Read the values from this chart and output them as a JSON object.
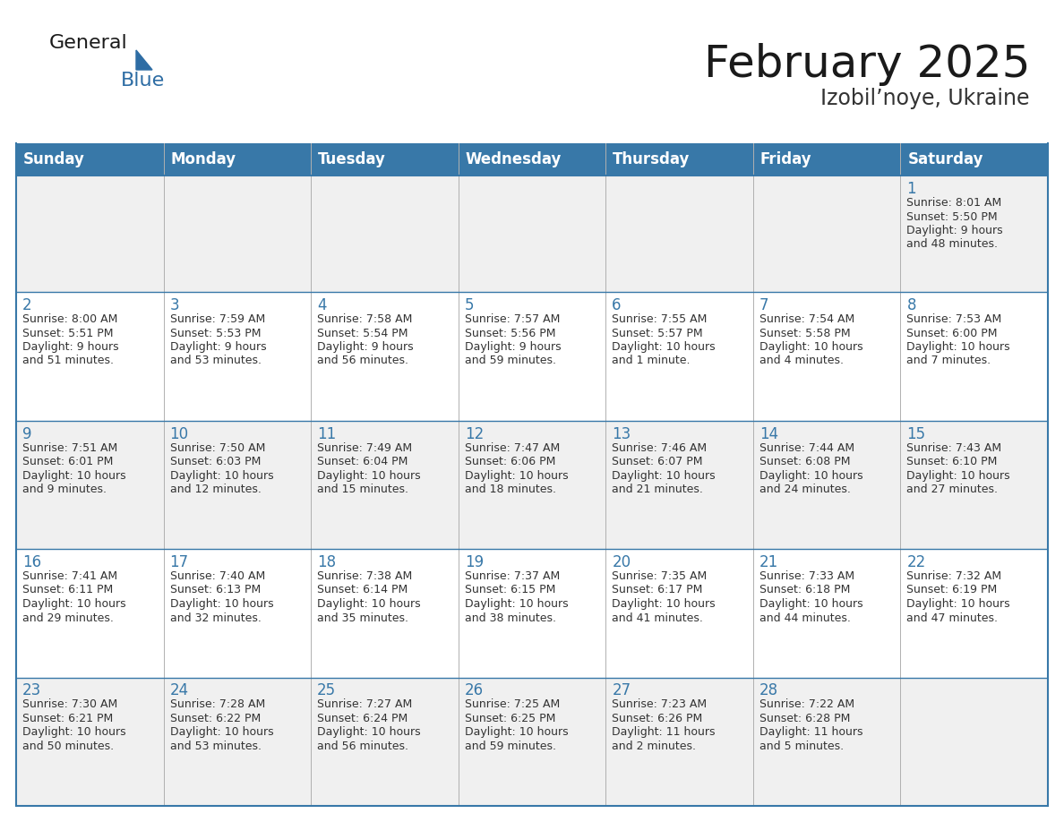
{
  "title": "February 2025",
  "subtitle": "Izobil’noye, Ukraine",
  "days_of_week": [
    "Sunday",
    "Monday",
    "Tuesday",
    "Wednesday",
    "Thursday",
    "Friday",
    "Saturday"
  ],
  "header_bg": "#3878a8",
  "header_text": "#ffffff",
  "row_bg_odd": "#f0f0f0",
  "row_bg_even": "#ffffff",
  "border_color": "#3878a8",
  "day_num_color": "#3878a8",
  "text_color": "#333333",
  "calendar": [
    [
      null,
      null,
      null,
      null,
      null,
      null,
      {
        "day": "1",
        "sunrise": "Sunrise: 8:01 AM",
        "sunset": "Sunset: 5:50 PM",
        "daylight": "Daylight: 9 hours",
        "daylight2": "and 48 minutes."
      }
    ],
    [
      {
        "day": "2",
        "sunrise": "Sunrise: 8:00 AM",
        "sunset": "Sunset: 5:51 PM",
        "daylight": "Daylight: 9 hours",
        "daylight2": "and 51 minutes."
      },
      {
        "day": "3",
        "sunrise": "Sunrise: 7:59 AM",
        "sunset": "Sunset: 5:53 PM",
        "daylight": "Daylight: 9 hours",
        "daylight2": "and 53 minutes."
      },
      {
        "day": "4",
        "sunrise": "Sunrise: 7:58 AM",
        "sunset": "Sunset: 5:54 PM",
        "daylight": "Daylight: 9 hours",
        "daylight2": "and 56 minutes."
      },
      {
        "day": "5",
        "sunrise": "Sunrise: 7:57 AM",
        "sunset": "Sunset: 5:56 PM",
        "daylight": "Daylight: 9 hours",
        "daylight2": "and 59 minutes."
      },
      {
        "day": "6",
        "sunrise": "Sunrise: 7:55 AM",
        "sunset": "Sunset: 5:57 PM",
        "daylight": "Daylight: 10 hours",
        "daylight2": "and 1 minute."
      },
      {
        "day": "7",
        "sunrise": "Sunrise: 7:54 AM",
        "sunset": "Sunset: 5:58 PM",
        "daylight": "Daylight: 10 hours",
        "daylight2": "and 4 minutes."
      },
      {
        "day": "8",
        "sunrise": "Sunrise: 7:53 AM",
        "sunset": "Sunset: 6:00 PM",
        "daylight": "Daylight: 10 hours",
        "daylight2": "and 7 minutes."
      }
    ],
    [
      {
        "day": "9",
        "sunrise": "Sunrise: 7:51 AM",
        "sunset": "Sunset: 6:01 PM",
        "daylight": "Daylight: 10 hours",
        "daylight2": "and 9 minutes."
      },
      {
        "day": "10",
        "sunrise": "Sunrise: 7:50 AM",
        "sunset": "Sunset: 6:03 PM",
        "daylight": "Daylight: 10 hours",
        "daylight2": "and 12 minutes."
      },
      {
        "day": "11",
        "sunrise": "Sunrise: 7:49 AM",
        "sunset": "Sunset: 6:04 PM",
        "daylight": "Daylight: 10 hours",
        "daylight2": "and 15 minutes."
      },
      {
        "day": "12",
        "sunrise": "Sunrise: 7:47 AM",
        "sunset": "Sunset: 6:06 PM",
        "daylight": "Daylight: 10 hours",
        "daylight2": "and 18 minutes."
      },
      {
        "day": "13",
        "sunrise": "Sunrise: 7:46 AM",
        "sunset": "Sunset: 6:07 PM",
        "daylight": "Daylight: 10 hours",
        "daylight2": "and 21 minutes."
      },
      {
        "day": "14",
        "sunrise": "Sunrise: 7:44 AM",
        "sunset": "Sunset: 6:08 PM",
        "daylight": "Daylight: 10 hours",
        "daylight2": "and 24 minutes."
      },
      {
        "day": "15",
        "sunrise": "Sunrise: 7:43 AM",
        "sunset": "Sunset: 6:10 PM",
        "daylight": "Daylight: 10 hours",
        "daylight2": "and 27 minutes."
      }
    ],
    [
      {
        "day": "16",
        "sunrise": "Sunrise: 7:41 AM",
        "sunset": "Sunset: 6:11 PM",
        "daylight": "Daylight: 10 hours",
        "daylight2": "and 29 minutes."
      },
      {
        "day": "17",
        "sunrise": "Sunrise: 7:40 AM",
        "sunset": "Sunset: 6:13 PM",
        "daylight": "Daylight: 10 hours",
        "daylight2": "and 32 minutes."
      },
      {
        "day": "18",
        "sunrise": "Sunrise: 7:38 AM",
        "sunset": "Sunset: 6:14 PM",
        "daylight": "Daylight: 10 hours",
        "daylight2": "and 35 minutes."
      },
      {
        "day": "19",
        "sunrise": "Sunrise: 7:37 AM",
        "sunset": "Sunset: 6:15 PM",
        "daylight": "Daylight: 10 hours",
        "daylight2": "and 38 minutes."
      },
      {
        "day": "20",
        "sunrise": "Sunrise: 7:35 AM",
        "sunset": "Sunset: 6:17 PM",
        "daylight": "Daylight: 10 hours",
        "daylight2": "and 41 minutes."
      },
      {
        "day": "21",
        "sunrise": "Sunrise: 7:33 AM",
        "sunset": "Sunset: 6:18 PM",
        "daylight": "Daylight: 10 hours",
        "daylight2": "and 44 minutes."
      },
      {
        "day": "22",
        "sunrise": "Sunrise: 7:32 AM",
        "sunset": "Sunset: 6:19 PM",
        "daylight": "Daylight: 10 hours",
        "daylight2": "and 47 minutes."
      }
    ],
    [
      {
        "day": "23",
        "sunrise": "Sunrise: 7:30 AM",
        "sunset": "Sunset: 6:21 PM",
        "daylight": "Daylight: 10 hours",
        "daylight2": "and 50 minutes."
      },
      {
        "day": "24",
        "sunrise": "Sunrise: 7:28 AM",
        "sunset": "Sunset: 6:22 PM",
        "daylight": "Daylight: 10 hours",
        "daylight2": "and 53 minutes."
      },
      {
        "day": "25",
        "sunrise": "Sunrise: 7:27 AM",
        "sunset": "Sunset: 6:24 PM",
        "daylight": "Daylight: 10 hours",
        "daylight2": "and 56 minutes."
      },
      {
        "day": "26",
        "sunrise": "Sunrise: 7:25 AM",
        "sunset": "Sunset: 6:25 PM",
        "daylight": "Daylight: 10 hours",
        "daylight2": "and 59 minutes."
      },
      {
        "day": "27",
        "sunrise": "Sunrise: 7:23 AM",
        "sunset": "Sunset: 6:26 PM",
        "daylight": "Daylight: 11 hours",
        "daylight2": "and 2 minutes."
      },
      {
        "day": "28",
        "sunrise": "Sunrise: 7:22 AM",
        "sunset": "Sunset: 6:28 PM",
        "daylight": "Daylight: 11 hours",
        "daylight2": "and 5 minutes."
      },
      null
    ]
  ],
  "figsize": [
    11.88,
    9.18
  ],
  "dpi": 100
}
